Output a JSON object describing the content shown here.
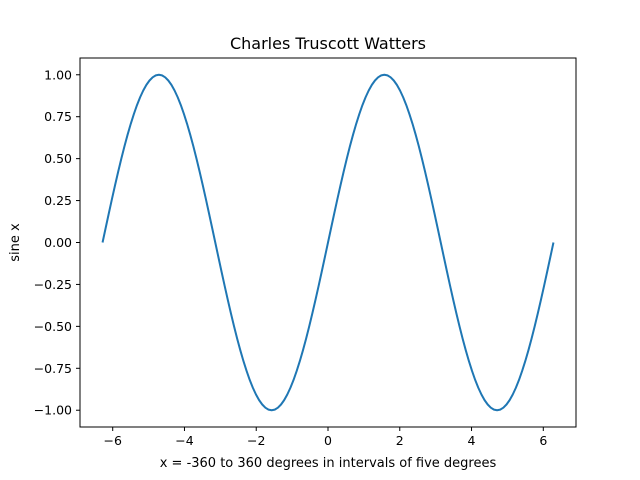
{
  "chart_data": {
    "type": "line",
    "title": "Charles Truscott Watters",
    "xlabel": "x = -360 to 360 degrees in intervals of five degrees",
    "ylabel": "sine x",
    "xlim": [
      -6.911503837897545,
      6.911503837897545
    ],
    "ylim": [
      -1.1,
      1.1
    ],
    "xticks": [
      -6,
      -4,
      -2,
      0,
      2,
      4,
      6
    ],
    "xtick_labels": [
      "−6",
      "−4",
      "−2",
      "0",
      "2",
      "4",
      "6"
    ],
    "yticks": [
      -1.0,
      -0.75,
      -0.5,
      -0.25,
      0.0,
      0.25,
      0.5,
      0.75,
      1.0
    ],
    "ytick_labels": [
      "−1.00",
      "−0.75",
      "−0.50",
      "−0.25",
      "0.00",
      "0.25",
      "0.50",
      "0.75",
      "1.00"
    ],
    "grid": false,
    "series": [
      {
        "color": "#1f77b4",
        "x": [
          -6.2832,
          -6.1959,
          -6.1087,
          -6.0214,
          -5.9341,
          -5.8469,
          -5.7596,
          -5.6723,
          -5.5851,
          -5.4978,
          -5.4105,
          -5.3233,
          -5.236,
          -5.1487,
          -5.0615,
          -4.9742,
          -4.8869,
          -4.7997,
          -4.7124,
          -4.6251,
          -4.5379,
          -4.4506,
          -4.3633,
          -4.2761,
          -4.1888,
          -4.1015,
          -4.0143,
          -3.927,
          -3.8397,
          -3.7525,
          -3.6652,
          -3.5779,
          -3.4907,
          -3.4034,
          -3.3161,
          -3.2289,
          -3.1416,
          -3.0543,
          -2.9671,
          -2.8798,
          -2.7925,
          -2.7053,
          -2.618,
          -2.5307,
          -2.4435,
          -2.3562,
          -2.2689,
          -2.1817,
          -2.0944,
          -2.0071,
          -1.9199,
          -1.8326,
          -1.7453,
          -1.6581,
          -1.5708,
          -1.4835,
          -1.3963,
          -1.309,
          -1.2217,
          -1.1345,
          -1.0472,
          -0.9599,
          -0.8727,
          -0.7854,
          -0.6981,
          -0.6109,
          -0.5236,
          -0.4363,
          -0.3491,
          -0.2618,
          -0.1745,
          -0.0873,
          0.0,
          0.0873,
          0.1745,
          0.2618,
          0.3491,
          0.4363,
          0.5236,
          0.6109,
          0.6981,
          0.7854,
          0.8727,
          0.9599,
          1.0472,
          1.1345,
          1.2217,
          1.309,
          1.3963,
          1.4835,
          1.5708,
          1.6581,
          1.7453,
          1.8326,
          1.9199,
          2.0071,
          2.0944,
          2.1817,
          2.2689,
          2.3562,
          2.4435,
          2.5307,
          2.618,
          2.7053,
          2.7925,
          2.8798,
          2.9671,
          3.0543,
          3.1416,
          3.2289,
          3.3161,
          3.4034,
          3.4907,
          3.5779,
          3.6652,
          3.7525,
          3.8397,
          3.927,
          4.0143,
          4.1015,
          4.1888,
          4.2761,
          4.3633,
          4.4506,
          4.5379,
          4.6251,
          4.7124,
          4.7997,
          4.8869,
          4.9742,
          5.0615,
          5.1487,
          5.236,
          5.3233,
          5.4105,
          5.4978,
          5.5851,
          5.6723,
          5.7596,
          5.8469,
          5.9341,
          6.0214,
          6.1087,
          6.1959,
          6.2832
        ],
        "y": [
          0.0,
          0.0872,
          0.1736,
          0.2588,
          0.342,
          0.4226,
          0.5,
          0.5736,
          0.6428,
          0.7071,
          0.766,
          0.8192,
          0.866,
          0.9063,
          0.9397,
          0.9659,
          0.9848,
          0.9962,
          1.0,
          0.9962,
          0.9848,
          0.9659,
          0.9397,
          0.9063,
          0.866,
          0.8192,
          0.766,
          0.7071,
          0.6428,
          0.5736,
          0.5,
          0.4226,
          0.342,
          0.2588,
          0.1736,
          0.0872,
          0.0,
          -0.0872,
          -0.1736,
          -0.2588,
          -0.342,
          -0.4226,
          -0.5,
          -0.5736,
          -0.6428,
          -0.7071,
          -0.766,
          -0.8192,
          -0.866,
          -0.9063,
          -0.9397,
          -0.9659,
          -0.9848,
          -0.9962,
          -1.0,
          -0.9962,
          -0.9848,
          -0.9659,
          -0.9397,
          -0.9063,
          -0.866,
          -0.8192,
          -0.766,
          -0.7071,
          -0.6428,
          -0.5736,
          -0.5,
          -0.4226,
          -0.342,
          -0.2588,
          -0.1736,
          -0.0872,
          0.0,
          0.0872,
          0.1736,
          0.2588,
          0.342,
          0.4226,
          0.5,
          0.5736,
          0.6428,
          0.7071,
          0.766,
          0.8192,
          0.866,
          0.9063,
          0.9397,
          0.9659,
          0.9848,
          0.9962,
          1.0,
          0.9962,
          0.9848,
          0.9659,
          0.9397,
          0.9063,
          0.866,
          0.8192,
          0.766,
          0.7071,
          0.6428,
          0.5736,
          0.5,
          0.4226,
          0.342,
          0.2588,
          0.1736,
          0.0872,
          0.0,
          -0.0872,
          -0.1736,
          -0.2588,
          -0.342,
          -0.4226,
          -0.5,
          -0.5736,
          -0.6428,
          -0.7071,
          -0.766,
          -0.8192,
          -0.866,
          -0.9063,
          -0.9397,
          -0.9659,
          -0.9848,
          -0.9962,
          -1.0,
          -0.9962,
          -0.9848,
          -0.9659,
          -0.9397,
          -0.9063,
          -0.866,
          -0.8192,
          -0.766,
          -0.7071,
          -0.6428,
          -0.5736,
          -0.5,
          -0.4226,
          -0.342,
          -0.2588,
          -0.1736,
          -0.0872,
          0.0
        ]
      }
    ]
  }
}
